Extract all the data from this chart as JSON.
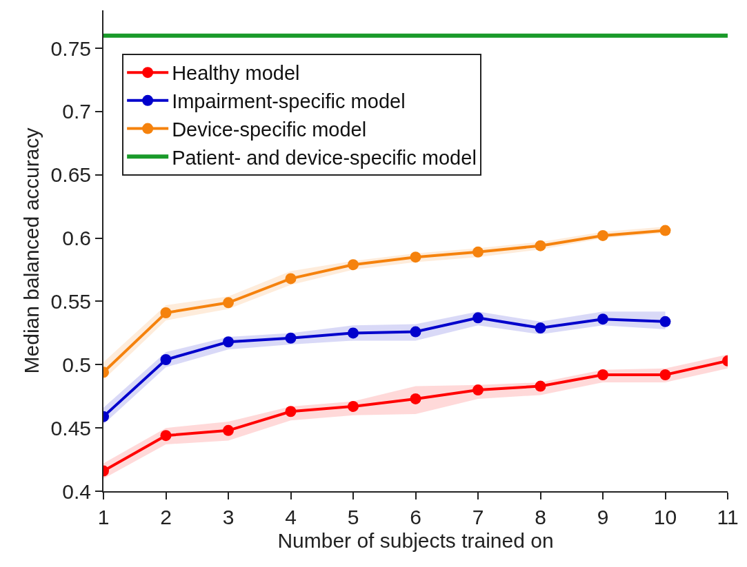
{
  "chart_data": {
    "type": "line",
    "xlabel": "Number of subjects trained on",
    "ylabel": "Median balanced accuracy",
    "xlim": [
      1,
      11
    ],
    "xticks": [
      1,
      2,
      3,
      4,
      5,
      6,
      7,
      8,
      9,
      10,
      11
    ],
    "ylim": [
      0.4,
      0.78
    ],
    "yticks": [
      0.4,
      0.45,
      0.5,
      0.55,
      0.6,
      0.65,
      0.7,
      0.75
    ],
    "legend": "top left",
    "marker": "circle",
    "line_style": "solid",
    "series": [
      {
        "name": "Healthy model",
        "color": "#ff0000",
        "x": [
          1,
          2,
          3,
          4,
          5,
          6,
          7,
          8,
          9,
          10,
          11
        ],
        "values": [
          0.416,
          0.444,
          0.448,
          0.463,
          0.467,
          0.473,
          0.48,
          0.483,
          0.492,
          0.492,
          0.503
        ],
        "lower": [
          0.41,
          0.437,
          0.44,
          0.456,
          0.46,
          0.461,
          0.473,
          0.476,
          0.486,
          0.486,
          0.497
        ],
        "upper": [
          0.422,
          0.45,
          0.455,
          0.467,
          0.471,
          0.483,
          0.484,
          0.486,
          0.496,
          0.497,
          0.508
        ]
      },
      {
        "name": "Impairment-specific model",
        "color": "#0000cc",
        "x": [
          1,
          2,
          3,
          4,
          5,
          6,
          7,
          8,
          9,
          10
        ],
        "values": [
          0.459,
          0.504,
          0.518,
          0.521,
          0.525,
          0.526,
          0.537,
          0.529,
          0.536,
          0.534
        ],
        "lower": [
          0.453,
          0.498,
          0.512,
          0.516,
          0.519,
          0.519,
          0.531,
          0.524,
          0.531,
          0.528
        ],
        "upper": [
          0.466,
          0.51,
          0.522,
          0.525,
          0.531,
          0.532,
          0.542,
          0.534,
          0.542,
          0.542
        ]
      },
      {
        "name": "Device-specific model",
        "color": "#f5820d",
        "x": [
          1,
          2,
          3,
          4,
          5,
          6,
          7,
          8,
          9,
          10
        ],
        "values": [
          0.494,
          0.541,
          0.549,
          0.568,
          0.579,
          0.585,
          0.589,
          0.594,
          0.602,
          0.606
        ],
        "lower": [
          0.488,
          0.535,
          0.544,
          0.563,
          0.575,
          0.581,
          0.585,
          0.591,
          0.6,
          0.604
        ],
        "upper": [
          0.502,
          0.547,
          0.554,
          0.574,
          0.582,
          0.588,
          0.592,
          0.597,
          0.605,
          0.609
        ]
      },
      {
        "name": "Patient- and device-specific model",
        "color": "#1a9a2a",
        "marker": "none",
        "x": [
          1,
          11
        ],
        "values": [
          0.76,
          0.76
        ]
      }
    ]
  }
}
